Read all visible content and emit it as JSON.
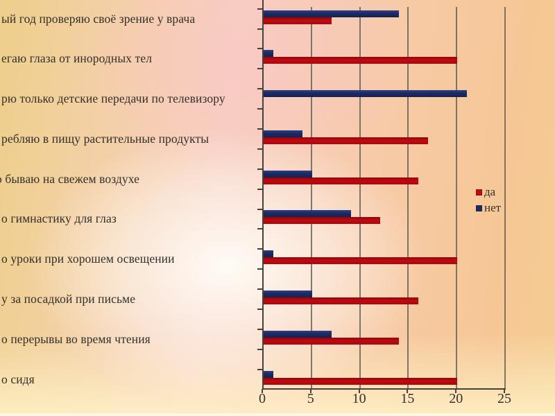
{
  "chart_data": {
    "type": "bar",
    "orientation": "horizontal",
    "title": "",
    "categories": [
      "ый год проверяю своё зрение у врача",
      "егаю глаза от инородных тел",
      "рю только детские передачи по телевизору",
      "ребляю в пищу растительные продукты",
      "о бываю на свежем воздухе",
      "о гимнастику для глаз",
      "о уроки при хорошем освещении",
      "у за посадкой при письме",
      "о перерывы во время чтения",
      "о сидя"
    ],
    "series": [
      {
        "name": "да",
        "color": "#c00a10",
        "values": [
          7,
          20,
          0,
          17,
          16,
          12,
          20,
          16,
          14,
          20
        ]
      },
      {
        "name": "нет",
        "color": "#1b2a63",
        "values": [
          14,
          1,
          21,
          4,
          5,
          9,
          1,
          5,
          7,
          1
        ]
      }
    ],
    "x_ticks": [
      0,
      5,
      10,
      15,
      20,
      25
    ],
    "xlim": [
      0,
      25
    ],
    "grid": true,
    "legend_position": "right-middle"
  },
  "colors": {
    "grid": "#686456",
    "axis": "#44423a",
    "text": "#32302a"
  }
}
